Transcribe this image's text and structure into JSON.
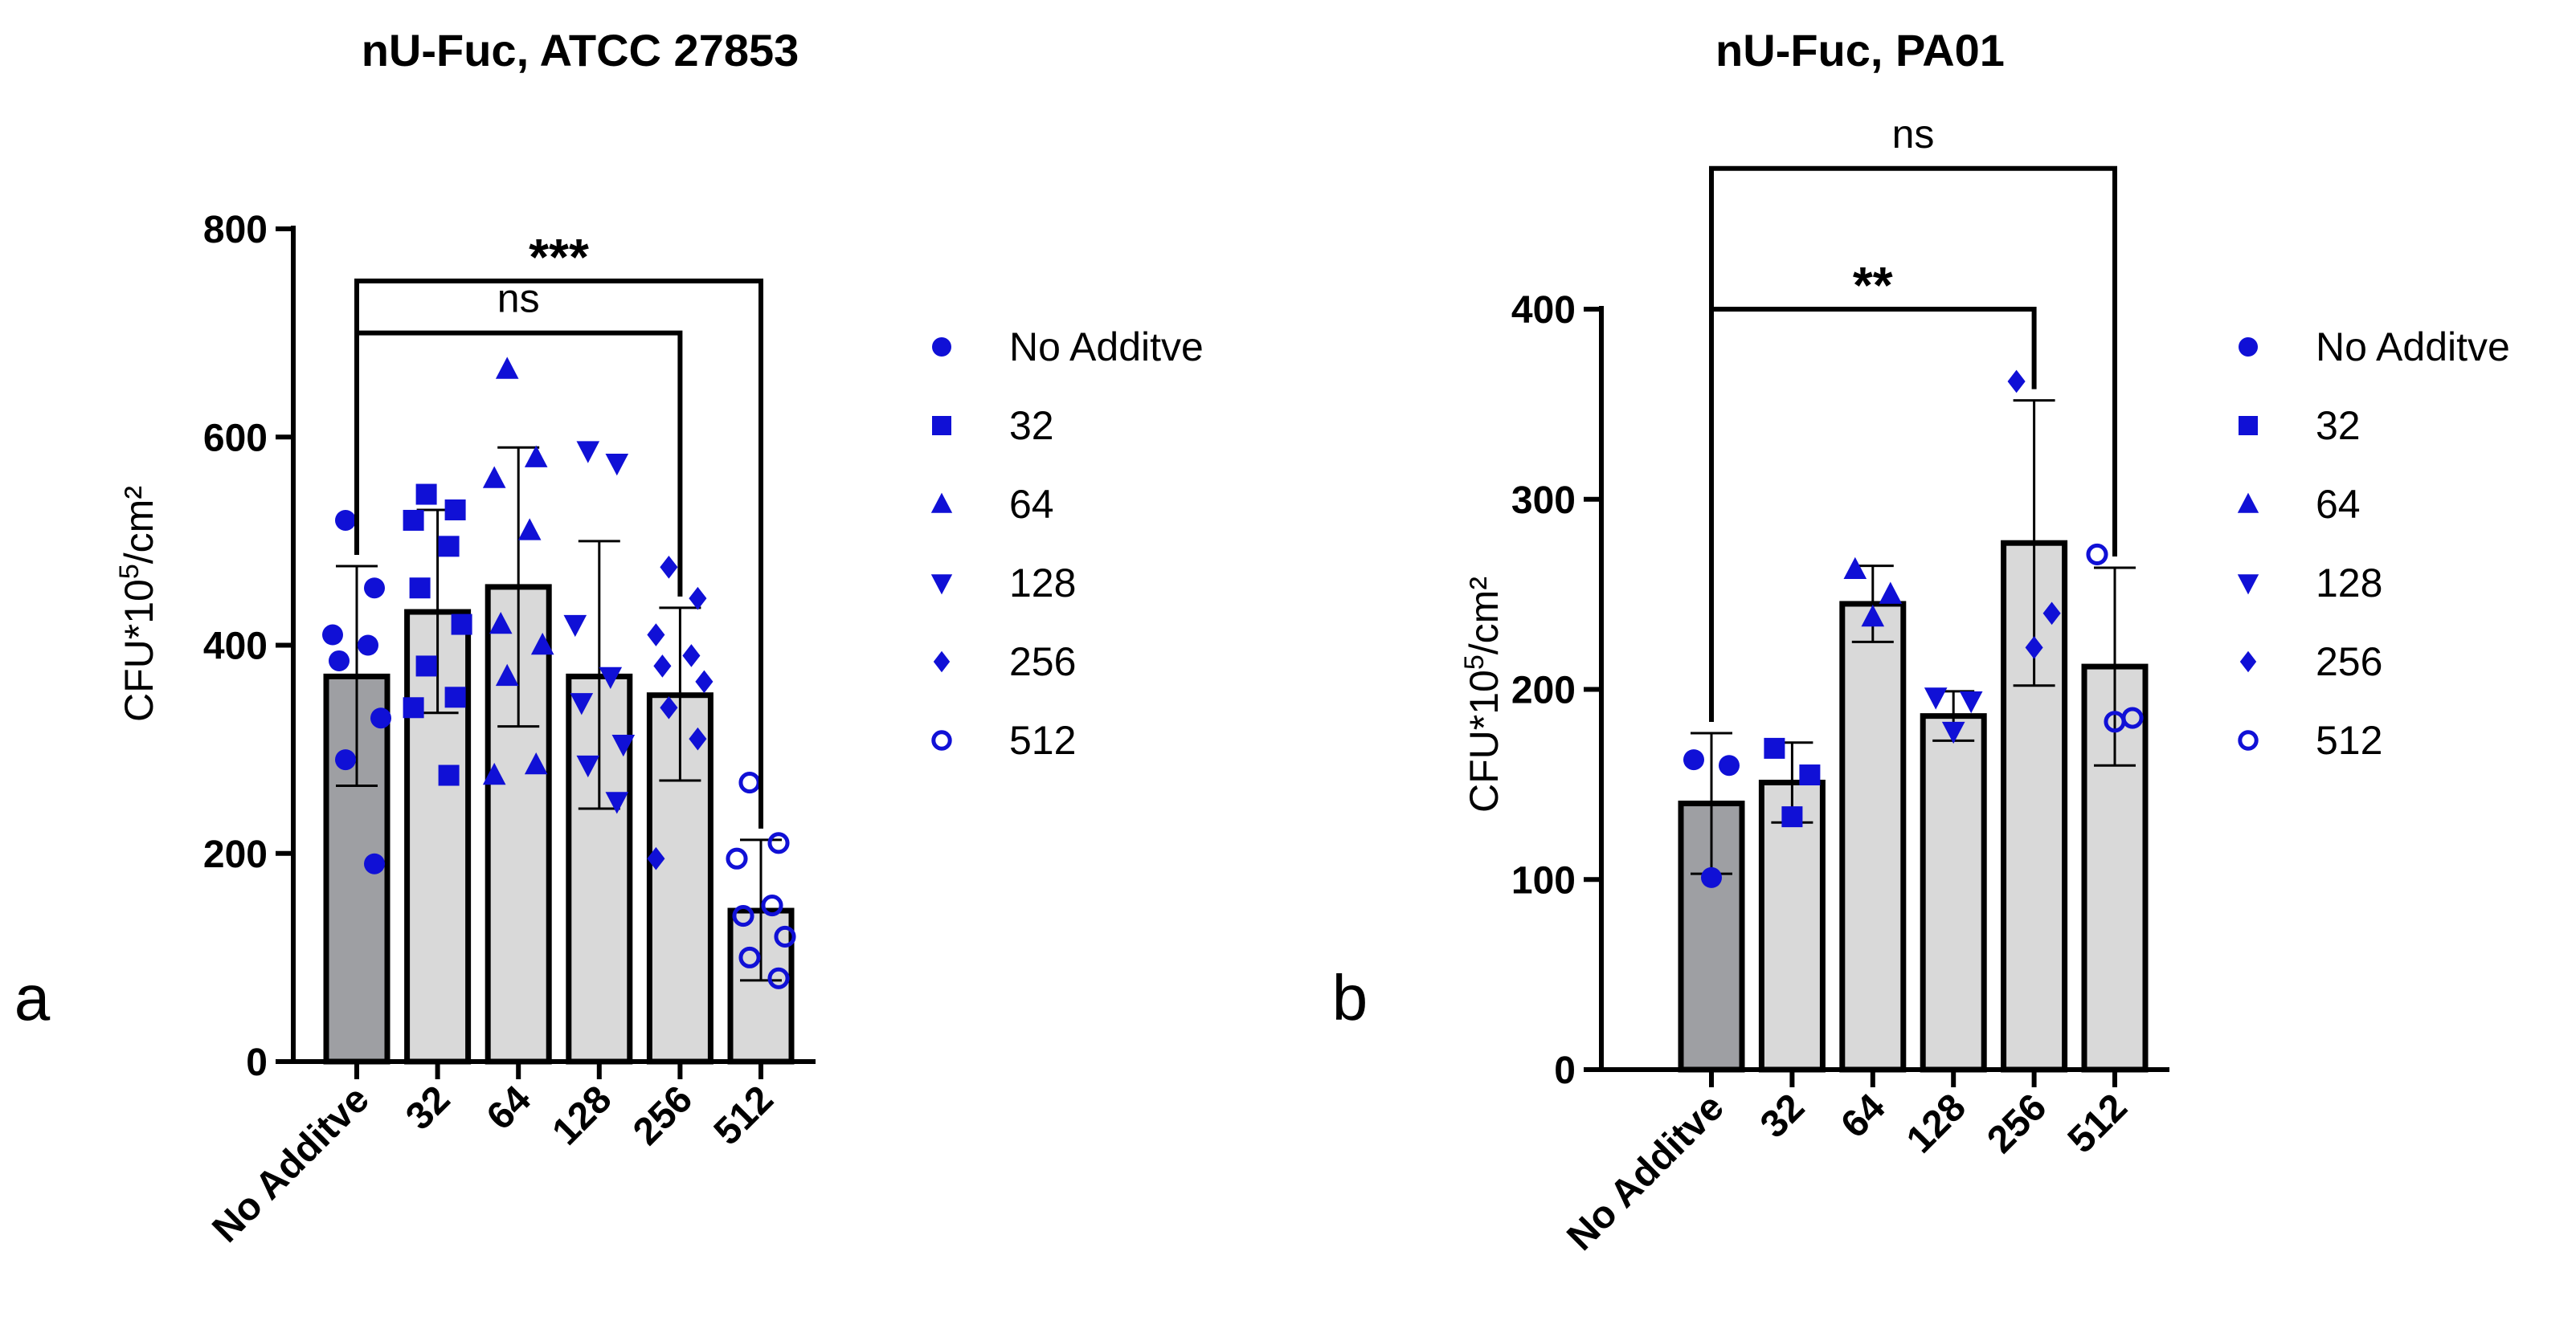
{
  "colors": {
    "marker": "#1010d6",
    "bar_control": "#9e9fa3",
    "bar": "#d9d9d9",
    "axis": "#000000"
  },
  "legend": {
    "entries": [
      {
        "label": "No Additve",
        "marker": "circle"
      },
      {
        "label": "32",
        "marker": "square"
      },
      {
        "label": "64",
        "marker": "triangle-up"
      },
      {
        "label": "128",
        "marker": "triangle-down"
      },
      {
        "label": "256",
        "marker": "diamond"
      },
      {
        "label": "512",
        "marker": "circle-open"
      }
    ]
  },
  "chart_data": [
    {
      "panel_label": "a",
      "type": "bar",
      "title": "nU-Fuc, ATCC 27853",
      "ylabel": "CFU*10",
      "ylabel_superscript": "5",
      "ylabel_suffix": "/cm²",
      "ylim": [
        0,
        800
      ],
      "yticks": [
        "0",
        "200",
        "400",
        "600",
        "800"
      ],
      "ytick_values": [
        0,
        200,
        400,
        600,
        800
      ],
      "categories": [
        "No Additve",
        "32",
        "64",
        "128",
        "256",
        "512"
      ],
      "values": [
        370,
        432,
        456,
        370,
        352,
        145
      ],
      "error_low": [
        265,
        335,
        322,
        243,
        270,
        78
      ],
      "error_high": [
        476,
        530,
        590,
        500,
        436,
        213
      ],
      "points": [
        [
          520,
          455,
          410,
          400,
          385,
          330,
          290,
          190
        ],
        [
          545,
          530,
          520,
          495,
          455,
          420,
          380,
          350,
          340,
          275
        ],
        [
          665,
          580,
          560,
          510,
          420,
          400,
          370,
          285,
          275
        ],
        [
          587,
          575,
          420,
          370,
          345,
          305,
          285,
          250
        ],
        [
          475,
          445,
          410,
          390,
          380,
          365,
          340,
          310,
          195
        ],
        [
          268,
          210,
          195,
          150,
          140,
          120,
          100,
          80
        ]
      ],
      "comparisons": [
        {
          "from": 0,
          "to": 5,
          "label": "***",
          "level": 750
        },
        {
          "from": 0,
          "to": 4,
          "label": "ns",
          "level": 700
        }
      ]
    },
    {
      "panel_label": "b",
      "type": "bar",
      "title": "nU-Fuc, PA01",
      "ylabel": "CFU*10",
      "ylabel_superscript": "5",
      "ylabel_suffix": "/cm²",
      "ylim": [
        0,
        400
      ],
      "yticks": [
        "0",
        "100",
        "200",
        "300",
        "400"
      ],
      "ytick_values": [
        0,
        100,
        200,
        300,
        400
      ],
      "categories": [
        "No Additve",
        "32",
        "64",
        "128",
        "256",
        "512"
      ],
      "values": [
        140,
        151,
        245,
        186,
        277,
        212
      ],
      "error_low": [
        103,
        130,
        225,
        173,
        202,
        160
      ],
      "error_high": [
        177,
        172,
        265,
        199,
        352,
        264
      ],
      "points": [
        [
          163,
          160,
          101
        ],
        [
          169,
          155,
          133
        ],
        [
          263,
          250,
          238
        ],
        [
          196,
          194,
          178
        ],
        [
          362,
          240,
          222
        ],
        [
          271,
          185,
          183
        ]
      ],
      "comparisons": [
        {
          "from": 0,
          "to": 5,
          "label": "ns",
          "level": 474
        },
        {
          "from": 0,
          "to": 4,
          "label": "**",
          "level": 400
        }
      ]
    }
  ]
}
